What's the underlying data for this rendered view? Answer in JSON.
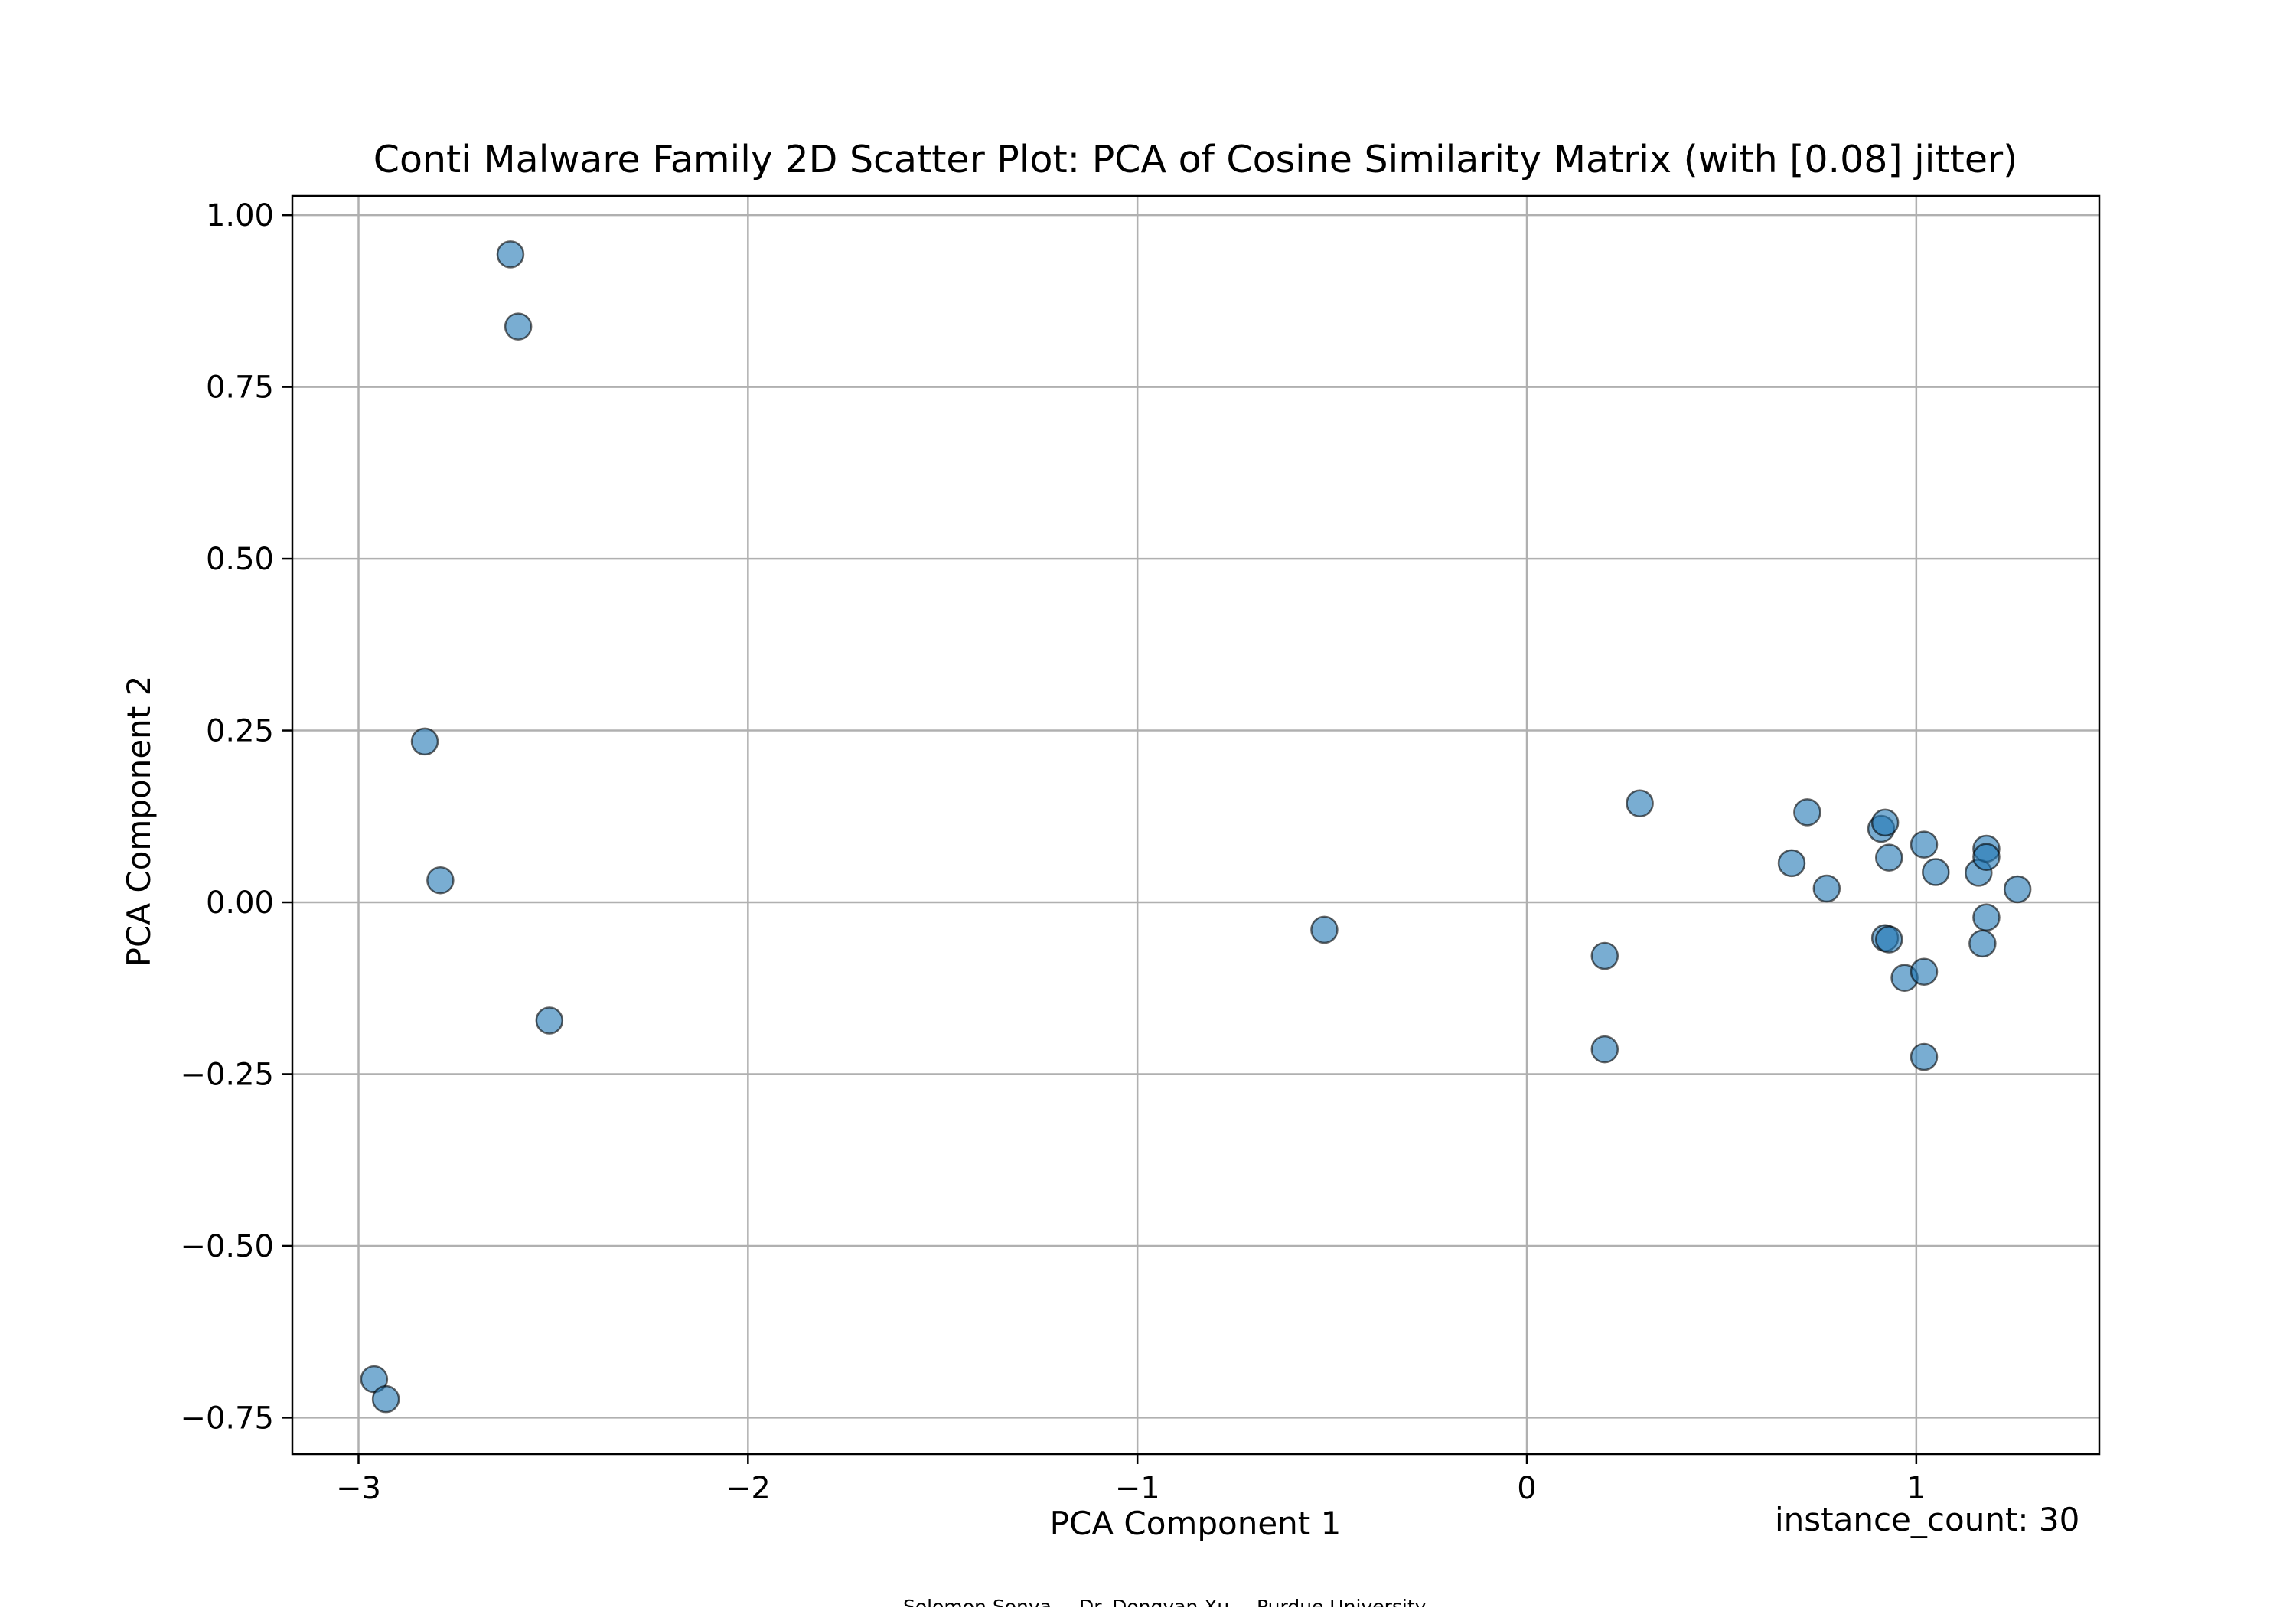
{
  "chart_data": {
    "type": "scatter",
    "title": "Conti Malware Family 2D Scatter Plot: PCA of Cosine Similarity Matrix (with [0.08] jitter)",
    "xlabel": "PCA Component 1",
    "ylabel": "PCA Component 2",
    "xlim": [
      -3.17,
      1.47
    ],
    "ylim": [
      -0.803,
      1.028
    ],
    "xticks": [
      -3,
      -2,
      -1,
      0,
      1
    ],
    "xtick_labels": [
      "−3",
      "−2",
      "−1",
      "0",
      "1"
    ],
    "yticks": [
      1.0,
      0.75,
      0.5,
      0.25,
      0.0,
      -0.25,
      -0.5,
      -0.75
    ],
    "ytick_labels": [
      "1.00",
      "0.75",
      "0.50",
      "0.25",
      "0.00",
      "−0.25",
      "−0.50",
      "−0.75"
    ],
    "grid": true,
    "legend": "none",
    "annotation": "instance_count: 30",
    "marker_color": "#1f77b4",
    "marker_edge_color": "#000000",
    "marker_alpha": 0.6,
    "points": [
      {
        "x": -2.61,
        "y": 0.943
      },
      {
        "x": -2.59,
        "y": 0.838
      },
      {
        "x": -2.83,
        "y": 0.234
      },
      {
        "x": -2.79,
        "y": 0.032
      },
      {
        "x": -2.51,
        "y": -0.172
      },
      {
        "x": -2.96,
        "y": -0.694
      },
      {
        "x": -2.93,
        "y": -0.723
      },
      {
        "x": -0.52,
        "y": -0.04
      },
      {
        "x": 0.2,
        "y": -0.078
      },
      {
        "x": 0.2,
        "y": -0.214
      },
      {
        "x": 0.29,
        "y": 0.144
      },
      {
        "x": 0.68,
        "y": 0.057
      },
      {
        "x": 0.72,
        "y": 0.131
      },
      {
        "x": 0.77,
        "y": 0.02
      },
      {
        "x": 0.91,
        "y": 0.107
      },
      {
        "x": 0.92,
        "y": 0.116
      },
      {
        "x": 0.93,
        "y": 0.065
      },
      {
        "x": 0.92,
        "y": -0.052
      },
      {
        "x": 0.93,
        "y": -0.054
      },
      {
        "x": 0.97,
        "y": -0.11
      },
      {
        "x": 1.02,
        "y": 0.084
      },
      {
        "x": 1.02,
        "y": -0.101
      },
      {
        "x": 1.02,
        "y": -0.225
      },
      {
        "x": 1.05,
        "y": 0.044
      },
      {
        "x": 1.16,
        "y": 0.043
      },
      {
        "x": 1.18,
        "y": 0.078
      },
      {
        "x": 1.18,
        "y": 0.066
      },
      {
        "x": 1.18,
        "y": -0.022
      },
      {
        "x": 1.17,
        "y": -0.06
      },
      {
        "x": 1.26,
        "y": 0.019
      }
    ]
  },
  "footer": {
    "author1": "Solomon Sonya",
    "author2": "Dr. Dongyan Xu",
    "affiliation": "Purdue University"
  }
}
